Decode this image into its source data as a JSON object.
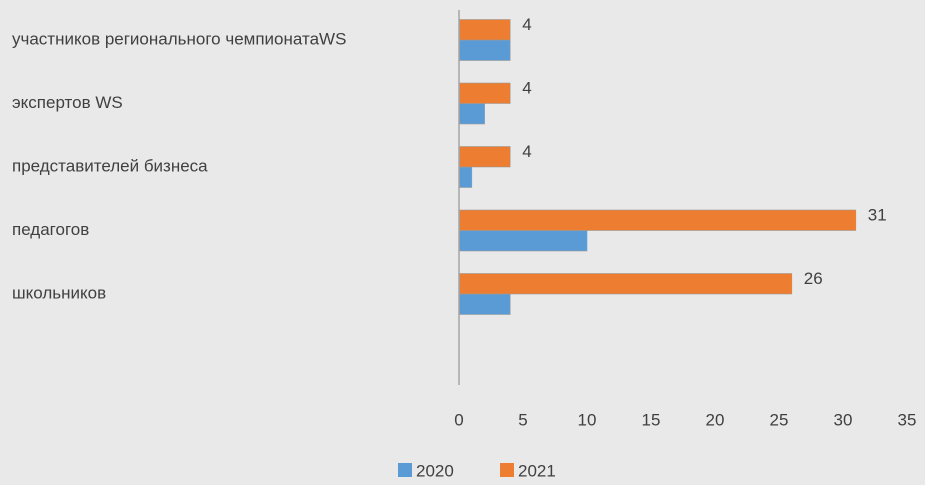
{
  "chart_data": {
    "type": "barh",
    "categories": [
      "участников регионального чемпионатаWS",
      "экспертов WS",
      "представителей бизнеса",
      "педагогов",
      "школьников"
    ],
    "series": [
      {
        "name": "2020",
        "color": "#5b9bd5",
        "values": [
          4,
          2,
          1,
          10,
          4
        ],
        "show_labels": false
      },
      {
        "name": "2021",
        "color": "#ed7d31",
        "values": [
          4,
          4,
          4,
          31,
          26
        ],
        "show_labels": true
      }
    ],
    "xlim": [
      0,
      35
    ],
    "xticks": [
      0,
      5,
      10,
      15,
      20,
      25,
      30,
      35
    ],
    "grid": false,
    "legend": "bottom"
  }
}
